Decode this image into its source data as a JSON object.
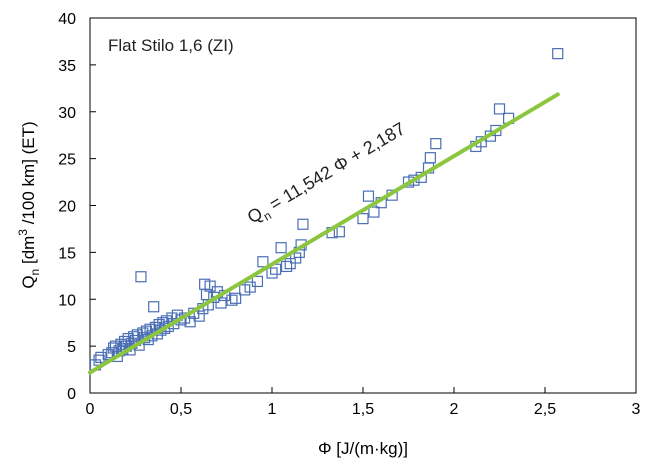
{
  "chart_data": {
    "type": "scatter",
    "title": "",
    "annotation": "Flat Stilo 1,6 (ZI)",
    "xlabel": "Φ [J/(m·kg)]",
    "ylabel": {
      "base": "Q",
      "sub": "n",
      "mid": " [dm",
      "sup": "3",
      "end": " /100 km]  (ET)"
    },
    "xlim": [
      0,
      3
    ],
    "ylim": [
      0,
      40
    ],
    "xticks": [
      0,
      0.5,
      1,
      1.5,
      2,
      2.5,
      3
    ],
    "xtick_labels": [
      "0",
      "0,5",
      "1",
      "1,5",
      "2",
      "2,5",
      "3"
    ],
    "yticks": [
      0,
      5,
      10,
      15,
      20,
      25,
      30,
      35,
      40
    ],
    "ytick_labels": [
      "0",
      "5",
      "10",
      "15",
      "20",
      "25",
      "30",
      "35",
      "40"
    ],
    "grid": false,
    "trendline": {
      "slope": 11.542,
      "intercept": 2.187,
      "x_range": [
        0,
        2.57
      ],
      "color": "#8cc63f",
      "label_parts": [
        "Q",
        "n",
        " = 11,542 Φ + 2,187"
      ]
    },
    "marker": {
      "shape": "square-open",
      "color": "#4a6fb5"
    },
    "series": [
      {
        "points": [
          [
            0.03,
            3.0
          ],
          [
            0.05,
            3.5
          ],
          [
            0.06,
            3.8
          ],
          [
            0.1,
            4.1
          ],
          [
            0.12,
            4.3
          ],
          [
            0.13,
            4.8
          ],
          [
            0.14,
            5.0
          ],
          [
            0.15,
            3.9
          ],
          [
            0.16,
            4.5
          ],
          [
            0.17,
            5.2
          ],
          [
            0.18,
            4.7
          ],
          [
            0.19,
            5.5
          ],
          [
            0.2,
            5.0
          ],
          [
            0.21,
            5.8
          ],
          [
            0.22,
            4.6
          ],
          [
            0.23,
            5.3
          ],
          [
            0.24,
            6.0
          ],
          [
            0.25,
            5.6
          ],
          [
            0.26,
            6.2
          ],
          [
            0.27,
            5.1
          ],
          [
            0.28,
            12.4
          ],
          [
            0.29,
            6.4
          ],
          [
            0.3,
            5.9
          ],
          [
            0.31,
            6.6
          ],
          [
            0.32,
            5.7
          ],
          [
            0.33,
            6.8
          ],
          [
            0.34,
            6.1
          ],
          [
            0.35,
            9.2
          ],
          [
            0.36,
            7.0
          ],
          [
            0.37,
            6.3
          ],
          [
            0.38,
            7.3
          ],
          [
            0.39,
            6.7
          ],
          [
            0.4,
            7.5
          ],
          [
            0.41,
            6.9
          ],
          [
            0.42,
            7.7
          ],
          [
            0.43,
            7.1
          ],
          [
            0.45,
            8.0
          ],
          [
            0.46,
            7.4
          ],
          [
            0.48,
            8.3
          ],
          [
            0.5,
            7.8
          ],
          [
            0.52,
            8.0
          ],
          [
            0.55,
            7.6
          ],
          [
            0.57,
            8.5
          ],
          [
            0.6,
            8.2
          ],
          [
            0.62,
            9.0
          ],
          [
            0.63,
            11.6
          ],
          [
            0.64,
            10.5
          ],
          [
            0.65,
            9.4
          ],
          [
            0.66,
            11.4
          ],
          [
            0.68,
            10.2
          ],
          [
            0.7,
            10.8
          ],
          [
            0.72,
            9.6
          ],
          [
            0.74,
            10.4
          ],
          [
            0.78,
            9.9
          ],
          [
            0.8,
            10.1
          ],
          [
            0.85,
            11.0
          ],
          [
            0.88,
            11.3
          ],
          [
            0.92,
            11.9
          ],
          [
            0.95,
            14.0
          ],
          [
            1.0,
            12.8
          ],
          [
            1.02,
            13.2
          ],
          [
            1.05,
            15.5
          ],
          [
            1.08,
            13.5
          ],
          [
            1.1,
            13.8
          ],
          [
            1.13,
            14.4
          ],
          [
            1.15,
            15.0
          ],
          [
            1.16,
            15.8
          ],
          [
            1.17,
            18.0
          ],
          [
            1.33,
            17.1
          ],
          [
            1.37,
            17.2
          ],
          [
            1.5,
            18.6
          ],
          [
            1.53,
            21.0
          ],
          [
            1.56,
            19.3
          ],
          [
            1.6,
            20.3
          ],
          [
            1.66,
            21.1
          ],
          [
            1.75,
            22.5
          ],
          [
            1.78,
            22.7
          ],
          [
            1.82,
            23.0
          ],
          [
            1.86,
            24.0
          ],
          [
            1.87,
            25.1
          ],
          [
            1.9,
            26.6
          ],
          [
            2.12,
            26.3
          ],
          [
            2.15,
            26.8
          ],
          [
            2.2,
            27.4
          ],
          [
            2.23,
            28.0
          ],
          [
            2.25,
            30.3
          ],
          [
            2.3,
            29.3
          ],
          [
            2.57,
            36.2
          ]
        ]
      }
    ]
  }
}
